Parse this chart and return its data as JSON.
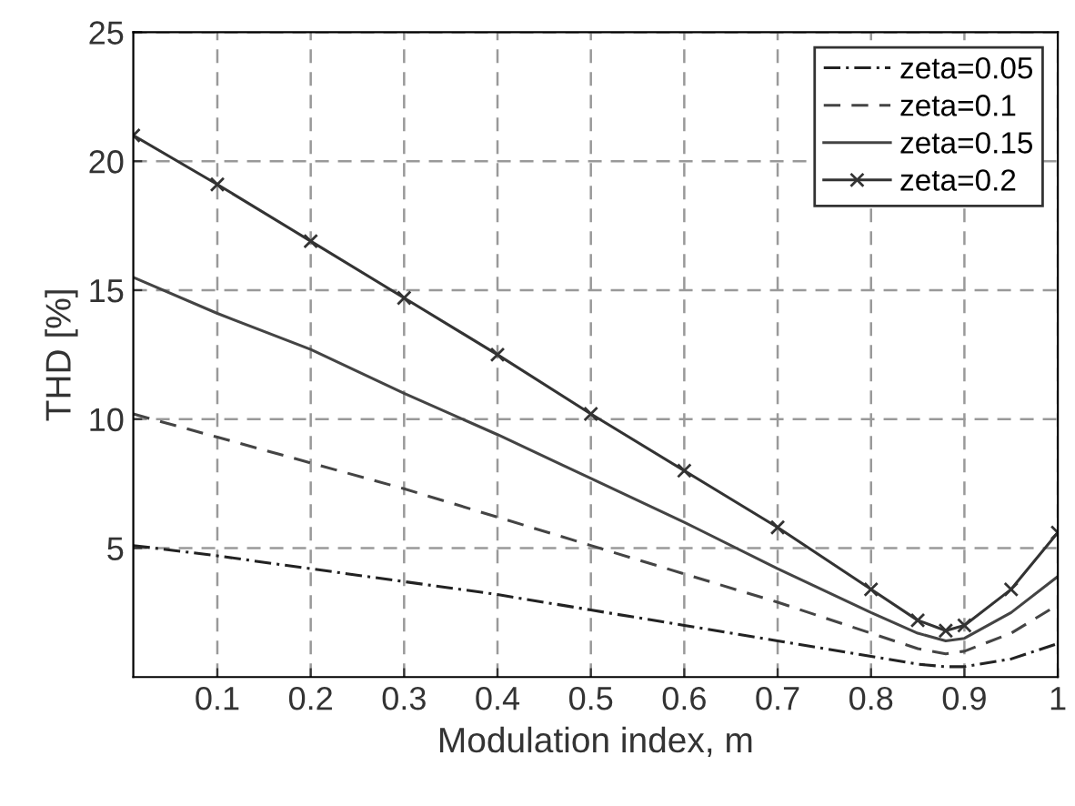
{
  "chart_data": {
    "type": "line",
    "xlabel": "Modulation index, m",
    "ylabel": "THD [%]",
    "x": [
      0.01,
      0.1,
      0.2,
      0.3,
      0.4,
      0.5,
      0.6,
      0.7,
      0.8,
      0.85,
      0.88,
      0.9,
      0.95,
      1
    ],
    "series": [
      {
        "name": "zeta=0.05",
        "color": "#222222",
        "line_style": "dashdot",
        "marker": "none",
        "values": [
          5.1,
          4.7,
          4.2,
          3.7,
          3.2,
          2.6,
          2.0,
          1.4,
          0.8,
          0.5,
          0.4,
          0.4,
          0.7,
          1.3
        ]
      },
      {
        "name": "zeta=0.1",
        "color": "#444444",
        "line_style": "dashed",
        "marker": "none",
        "values": [
          10.2,
          9.3,
          8.3,
          7.3,
          6.2,
          5.1,
          4.0,
          2.9,
          1.7,
          1.1,
          0.9,
          1.0,
          1.7,
          2.8
        ]
      },
      {
        "name": "zeta=0.15",
        "color": "#444444",
        "line_style": "solid",
        "marker": "none",
        "values": [
          15.5,
          14.1,
          12.7,
          11.0,
          9.4,
          7.7,
          6.0,
          4.2,
          2.5,
          1.7,
          1.4,
          1.5,
          2.5,
          3.9
        ]
      },
      {
        "name": "zeta=0.2",
        "color": "#333333",
        "line_style": "solid",
        "marker": "cross",
        "values": [
          21.0,
          19.1,
          16.9,
          14.7,
          12.5,
          10.2,
          8.0,
          5.8,
          3.4,
          2.2,
          1.8,
          2.0,
          3.4,
          5.6
        ]
      }
    ],
    "xlim": [
      0.01,
      1
    ],
    "ylim": [
      0,
      25
    ],
    "xticks": [
      0.1,
      0.2,
      0.3,
      0.4,
      0.5,
      0.6,
      0.7,
      0.8,
      0.9,
      1
    ],
    "yticks": [
      5,
      10,
      15,
      20,
      25
    ],
    "grid": true,
    "legend": "top right"
  }
}
